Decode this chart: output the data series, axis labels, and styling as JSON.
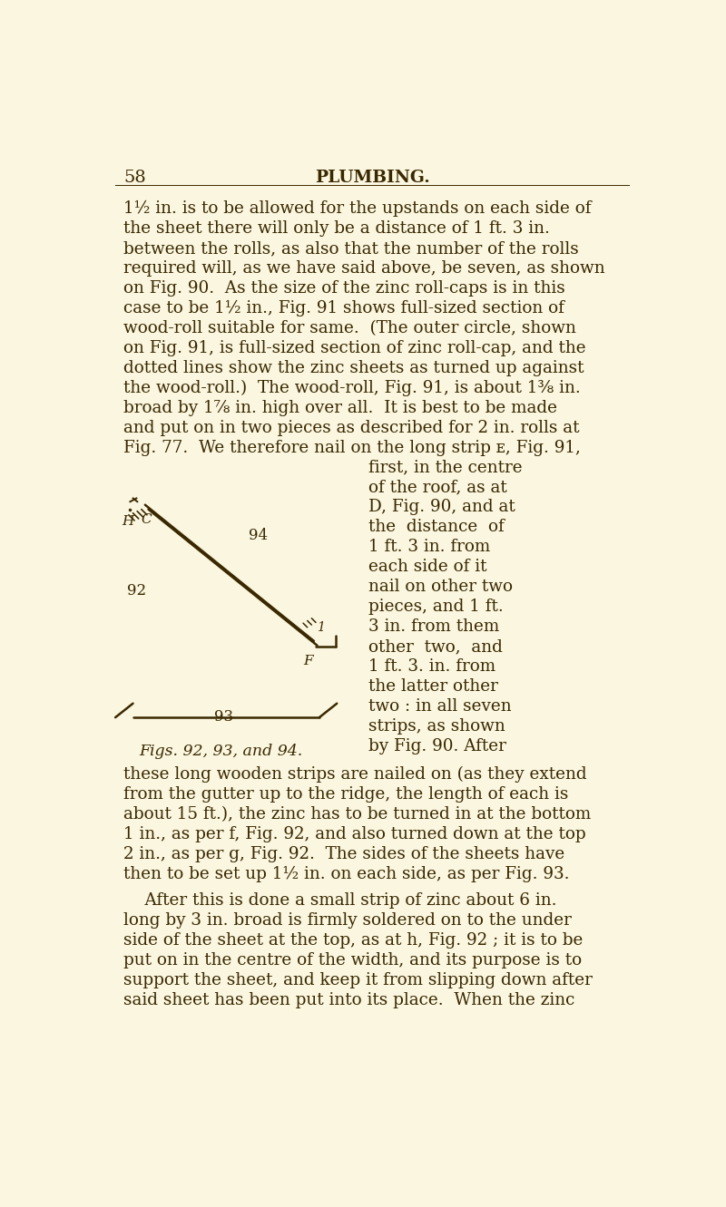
{
  "bg_color": "#faf6e0",
  "text_color": "#3a2800",
  "page_number": "58",
  "header": "PLUMBING.",
  "line_color": "#3a2800",
  "fig_caption": "Figs. 92, 93, and 94.",
  "lines_p1": [
    "1½ in. is to be allowed for the upstands on each side of",
    "the sheet there will only be a distance of 1 ft. 3 in.",
    "between the rolls, as also that the number of the rolls",
    "required will, as we have said above, be seven, as shown",
    "on Fig. 90.  As the size of the zinc roll-caps is in this",
    "case to be 1½ in., Fig. 91 shows full-sized section of",
    "wood-roll suitable for same.  (The outer circle, shown",
    "on Fig. 91, is full-sized section of zinc roll-cap, and the",
    "dotted lines show the zinc sheets as turned up against",
    "the wood-roll.)  The wood-roll, Fig. 91, is about 1⅜ in.",
    "broad by 1⅞ in. high over all.  It is best to be made",
    "and put on in two pieces as described for 2 in. rolls at",
    "Fig. 77.  We therefore nail on the long strip ᴇ, Fig. 91,"
  ],
  "right_col_lines": [
    "first, in the centre",
    "of the roof, as at",
    "D, Fig. 90, and at",
    "the  distance  of",
    "1 ft. 3 in. from",
    "each side of it",
    "nail on other two",
    "pieces, and 1 ft.",
    "3 in. from them",
    "other  two,  and",
    "1 ft. 3. in. from",
    "the latter other",
    "two : in all seven",
    "strips, as shown",
    "by Fig. 90. After"
  ],
  "lines_p2": [
    "these long wooden strips are nailed on (as they extend",
    "from the gutter up to the ridge, the length of each is",
    "about 15 ft.), the zinc has to be turned in at the bottom",
    "1 in., as per f, Fig. 92, and also turned down at the top",
    "2 in., as per g, Fig. 92.  The sides of the sheets have",
    "then to be set up 1½ in. on each side, as per Fig. 93."
  ],
  "lines_p3": [
    "    After this is done a small strip of zinc about 6 in.",
    "long by 3 in. broad is firmly soldered on to the under",
    "side of the sheet at the top, as at h, Fig. 92 ; it is to be",
    "put on in the centre of the width, and its purpose is to",
    "support the sheet, and keep it from slipping down after",
    "said sheet has been put into its place.  When the zinc"
  ]
}
